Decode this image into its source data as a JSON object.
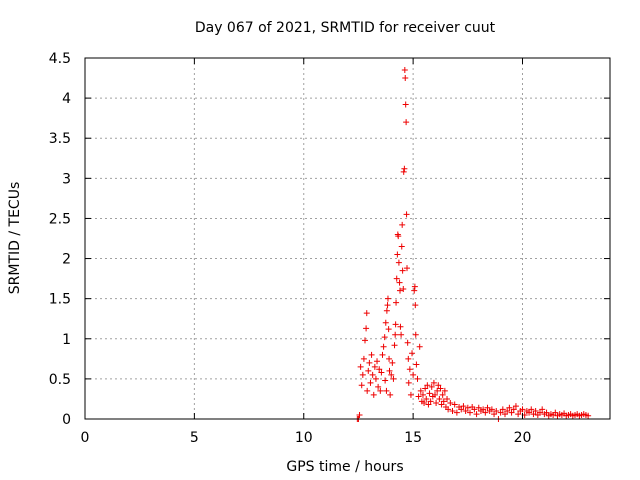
{
  "chart_data": {
    "type": "scatter",
    "title": "Day 067 of 2021, SRMTID for receiver cuut",
    "xlabel": "GPS time / hours",
    "ylabel": "SRMTID / TECUs",
    "xlim": [
      0,
      24
    ],
    "ylim": [
      0,
      4.5
    ],
    "xticks": [
      0,
      5,
      10,
      15,
      20
    ],
    "yticks": [
      0,
      0.5,
      1,
      1.5,
      2,
      2.5,
      3,
      3.5,
      4,
      4.5
    ],
    "grid": true,
    "series": [
      {
        "name": "SRMTID",
        "color": "#ee0000",
        "marker": "plus",
        "points": [
          [
            12.45,
            0.0
          ],
          [
            12.5,
            0.0
          ],
          [
            12.55,
            0.05
          ],
          [
            12.6,
            0.65
          ],
          [
            12.65,
            0.42
          ],
          [
            12.7,
            0.55
          ],
          [
            12.75,
            0.75
          ],
          [
            12.8,
            0.98
          ],
          [
            12.85,
            1.13
          ],
          [
            12.88,
            1.32
          ],
          [
            12.9,
            0.35
          ],
          [
            12.95,
            0.6
          ],
          [
            13.0,
            0.7
          ],
          [
            13.05,
            0.45
          ],
          [
            13.1,
            0.8
          ],
          [
            13.15,
            0.55
          ],
          [
            13.2,
            0.3
          ],
          [
            13.25,
            0.65
          ],
          [
            13.3,
            0.5
          ],
          [
            13.35,
            0.72
          ],
          [
            13.4,
            0.4
          ],
          [
            13.45,
            0.62
          ],
          [
            13.5,
            0.35
          ],
          [
            13.55,
            0.58
          ],
          [
            13.6,
            0.8
          ],
          [
            13.65,
            0.9
          ],
          [
            13.7,
            1.02
          ],
          [
            13.72,
            0.48
          ],
          [
            13.75,
            1.2
          ],
          [
            13.78,
            0.35
          ],
          [
            13.8,
            1.35
          ],
          [
            13.83,
            1.42
          ],
          [
            13.85,
            1.5
          ],
          [
            13.88,
            1.12
          ],
          [
            13.9,
            0.75
          ],
          [
            13.92,
            0.6
          ],
          [
            13.95,
            0.3
          ],
          [
            14.0,
            0.55
          ],
          [
            14.05,
            0.7
          ],
          [
            14.1,
            0.5
          ],
          [
            14.15,
            0.92
          ],
          [
            14.18,
            1.05
          ],
          [
            14.2,
            1.18
          ],
          [
            14.22,
            1.45
          ],
          [
            14.25,
            1.75
          ],
          [
            14.28,
            2.05
          ],
          [
            14.3,
            2.3
          ],
          [
            14.32,
            2.28
          ],
          [
            14.35,
            1.95
          ],
          [
            14.38,
            1.7
          ],
          [
            14.4,
            1.6
          ],
          [
            14.42,
            1.15
          ],
          [
            14.45,
            1.05
          ],
          [
            14.48,
            2.15
          ],
          [
            14.5,
            2.42
          ],
          [
            14.52,
            1.85
          ],
          [
            14.55,
            1.62
          ],
          [
            14.57,
            3.08
          ],
          [
            14.6,
            3.12
          ],
          [
            14.62,
            4.35
          ],
          [
            14.64,
            4.25
          ],
          [
            14.66,
            3.92
          ],
          [
            14.68,
            3.7
          ],
          [
            14.7,
            2.55
          ],
          [
            14.72,
            1.88
          ],
          [
            14.75,
            0.95
          ],
          [
            14.78,
            0.75
          ],
          [
            14.8,
            0.45
          ],
          [
            14.85,
            0.62
          ],
          [
            14.9,
            0.3
          ],
          [
            14.95,
            0.82
          ],
          [
            15.0,
            0.55
          ],
          [
            15.05,
            1.6
          ],
          [
            15.08,
            1.65
          ],
          [
            15.1,
            1.42
          ],
          [
            15.12,
            1.05
          ],
          [
            15.15,
            0.68
          ],
          [
            15.2,
            0.5
          ],
          [
            15.25,
            0.28
          ],
          [
            15.3,
            0.9
          ],
          [
            15.35,
            0.35
          ],
          [
            15.4,
            0.22
          ],
          [
            15.45,
            0.3
          ],
          [
            15.5,
            0.2
          ],
          [
            15.55,
            0.38
          ],
          [
            15.6,
            0.25
          ],
          [
            15.65,
            0.42
          ],
          [
            15.7,
            0.18
          ],
          [
            15.75,
            0.32
          ],
          [
            15.8,
            0.22
          ],
          [
            15.85,
            0.4
          ],
          [
            15.9,
            0.28
          ],
          [
            15.95,
            0.45
          ],
          [
            16.0,
            0.3
          ],
          [
            16.05,
            0.2
          ],
          [
            16.1,
            0.35
          ],
          [
            16.15,
            0.42
          ],
          [
            16.2,
            0.25
          ],
          [
            16.25,
            0.38
          ],
          [
            16.3,
            0.18
          ],
          [
            16.35,
            0.3
          ],
          [
            16.4,
            0.22
          ],
          [
            16.45,
            0.35
          ],
          [
            16.5,
            0.15
          ],
          [
            16.55,
            0.25
          ],
          [
            16.6,
            0.12
          ],
          [
            16.7,
            0.2
          ],
          [
            16.8,
            0.1
          ],
          [
            16.9,
            0.18
          ],
          [
            17.0,
            0.08
          ],
          [
            17.1,
            0.15
          ],
          [
            17.2,
            0.12
          ],
          [
            17.3,
            0.16
          ],
          [
            17.4,
            0.1
          ],
          [
            17.5,
            0.14
          ],
          [
            17.6,
            0.08
          ],
          [
            17.7,
            0.15
          ],
          [
            17.8,
            0.12
          ],
          [
            17.9,
            0.06
          ],
          [
            18.0,
            0.14
          ],
          [
            18.1,
            0.1
          ],
          [
            18.2,
            0.12
          ],
          [
            18.3,
            0.08
          ],
          [
            18.4,
            0.14
          ],
          [
            18.5,
            0.1
          ],
          [
            18.6,
            0.12
          ],
          [
            18.7,
            0.06
          ],
          [
            18.8,
            0.1
          ],
          [
            18.9,
            0.0
          ],
          [
            19.0,
            0.08
          ],
          [
            19.1,
            0.12
          ],
          [
            19.2,
            0.06
          ],
          [
            19.3,
            0.1
          ],
          [
            19.4,
            0.14
          ],
          [
            19.5,
            0.08
          ],
          [
            19.6,
            0.12
          ],
          [
            19.7,
            0.16
          ],
          [
            19.8,
            0.06
          ],
          [
            19.9,
            0.1
          ],
          [
            20.0,
            0.12
          ],
          [
            20.1,
            0.05
          ],
          [
            20.2,
            0.1
          ],
          [
            20.3,
            0.08
          ],
          [
            20.4,
            0.12
          ],
          [
            20.5,
            0.06
          ],
          [
            20.6,
            0.1
          ],
          [
            20.7,
            0.05
          ],
          [
            20.8,
            0.08
          ],
          [
            20.9,
            0.12
          ],
          [
            21.0,
            0.06
          ],
          [
            21.1,
            0.08
          ],
          [
            21.2,
            0.04
          ],
          [
            21.3,
            0.06
          ],
          [
            21.4,
            0.05
          ],
          [
            21.5,
            0.08
          ],
          [
            21.6,
            0.04
          ],
          [
            21.7,
            0.06
          ],
          [
            21.8,
            0.05
          ],
          [
            21.9,
            0.07
          ],
          [
            22.0,
            0.04
          ],
          [
            22.1,
            0.05
          ],
          [
            22.2,
            0.06
          ],
          [
            22.3,
            0.04
          ],
          [
            22.4,
            0.05
          ],
          [
            22.5,
            0.06
          ],
          [
            22.6,
            0.04
          ],
          [
            22.7,
            0.05
          ],
          [
            22.8,
            0.06
          ],
          [
            22.9,
            0.05
          ],
          [
            23.0,
            0.04
          ]
        ]
      }
    ]
  }
}
